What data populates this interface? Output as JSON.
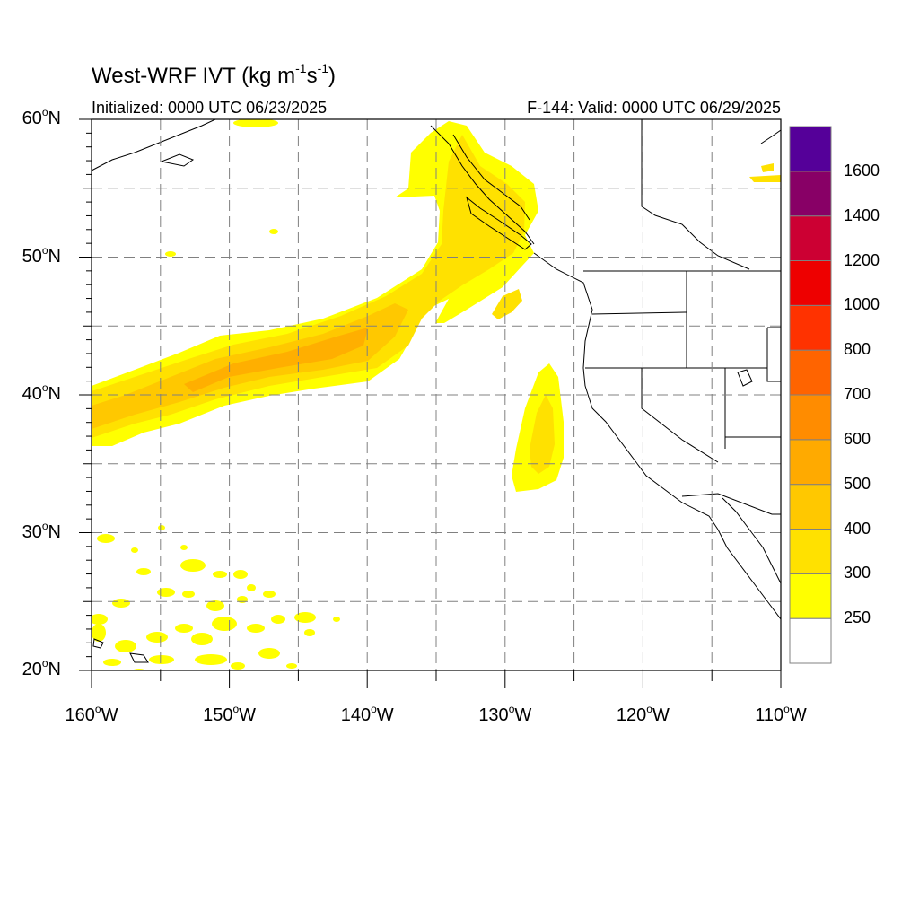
{
  "header": {
    "title_main": "West-WRF IVT (kg m",
    "title_exp1": "-1",
    "title_mid": "s",
    "title_exp2": "-1",
    "title_end": ")",
    "initialized": "Initialized: 0000 UTC 06/23/2025",
    "valid": "F-144: Valid: 0000 UTC 06/29/2025"
  },
  "map": {
    "projection": "cylindrical equidistant",
    "lon_range": [
      -160,
      -110
    ],
    "lat_range": [
      20,
      60
    ],
    "grid": true,
    "lat_ticks": [
      {
        "value": 60,
        "num": "60",
        "hemi": "N"
      },
      {
        "value": 50,
        "num": "50",
        "hemi": "N"
      },
      {
        "value": 40,
        "num": "40",
        "hemi": "N"
      },
      {
        "value": 30,
        "num": "30",
        "hemi": "N"
      },
      {
        "value": 20,
        "num": "20",
        "hemi": "N"
      }
    ],
    "lon_ticks": [
      {
        "value": -160,
        "num": "160",
        "hemi": "W"
      },
      {
        "value": -150,
        "num": "150",
        "hemi": "W"
      },
      {
        "value": -140,
        "num": "140",
        "hemi": "W"
      },
      {
        "value": -130,
        "num": "130",
        "hemi": "W"
      },
      {
        "value": -120,
        "num": "120",
        "hemi": "W"
      },
      {
        "value": -110,
        "num": "110",
        "hemi": "W"
      }
    ],
    "coastline_color": "#000000",
    "grid_color": "#808080"
  },
  "colorbar": {
    "levels": [
      "250",
      "300",
      "400",
      "500",
      "600",
      "700",
      "800",
      "1000",
      "1200",
      "1400",
      "1600"
    ],
    "colors": [
      "#ffffff",
      "#ffff00",
      "#ffe100",
      "#ffc800",
      "#ffaa00",
      "#ff8c00",
      "#ff6400",
      "#ff3200",
      "#ee0000",
      "#cc0033",
      "#880066",
      "#550099"
    ]
  }
}
